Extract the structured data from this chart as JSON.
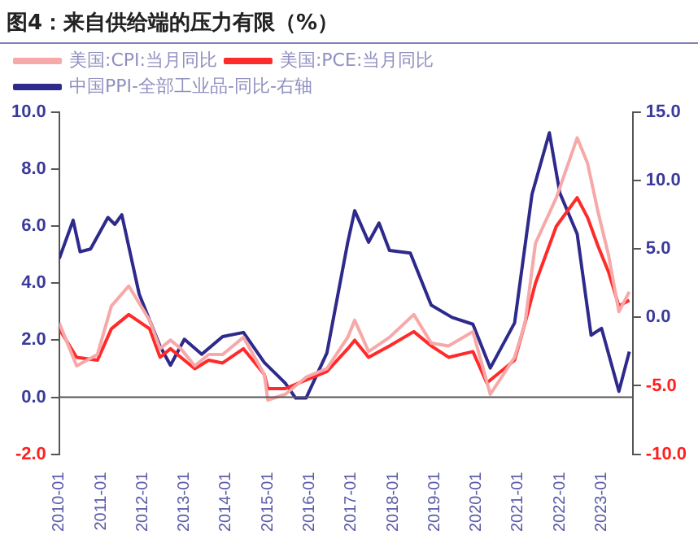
{
  "chart_data": {
    "type": "line",
    "title": "图4：来自供给端的压力有限（%）",
    "legend": "top",
    "grid": false,
    "marker": "none",
    "line_style": "solid",
    "xlim": [
      "2010-01",
      "2023-10"
    ],
    "xticks": [
      "2010-01",
      "2011-01",
      "2012-01",
      "2013-01",
      "2014-01",
      "2015-01",
      "2016-01",
      "2017-01",
      "2018-01",
      "2019-01",
      "2020-01",
      "2021-01",
      "2022-01",
      "2023-01"
    ],
    "ylim": [
      -2,
      10
    ],
    "yticks": [
      {
        "value": -2,
        "label": "-2.0"
      },
      {
        "value": 0,
        "label": "0.0"
      },
      {
        "value": 2,
        "label": "2.0"
      },
      {
        "value": 4,
        "label": "4.0"
      },
      {
        "value": 6,
        "label": "6.0"
      },
      {
        "value": 8,
        "label": "8.0"
      },
      {
        "value": 10,
        "label": "10.0"
      }
    ],
    "y2lim": [
      -10,
      15
    ],
    "y2ticks": [
      {
        "value": -10,
        "label": "-10.0"
      },
      {
        "value": -5,
        "label": "-5.0"
      },
      {
        "value": 0,
        "label": "0.0"
      },
      {
        "value": 5,
        "label": "5.0"
      },
      {
        "value": 10,
        "label": "10.0"
      },
      {
        "value": 15,
        "label": "15.0"
      }
    ],
    "ref_lines": [
      {
        "axis": "y",
        "value": 0,
        "color": "#555555"
      }
    ],
    "series": [
      {
        "name": "美国:CPI:当月同比",
        "color": "#f7a8a8",
        "x": [
          "2010-01",
          "2010-06",
          "2010-12",
          "2011-04",
          "2011-09",
          "2012-03",
          "2012-06",
          "2012-09",
          "2012-12",
          "2013-04",
          "2013-08",
          "2013-12",
          "2014-06",
          "2014-12",
          "2015-01",
          "2015-06",
          "2015-12",
          "2016-06",
          "2016-12",
          "2017-02",
          "2017-06",
          "2017-12",
          "2018-07",
          "2018-12",
          "2019-05",
          "2019-12",
          "2020-05",
          "2020-12",
          "2021-03",
          "2021-06",
          "2021-12",
          "2022-06",
          "2022-09",
          "2022-12",
          "2023-03",
          "2023-06",
          "2023-09"
        ],
        "values": [
          2.6,
          1.1,
          1.5,
          3.2,
          3.9,
          2.7,
          1.7,
          2.0,
          1.7,
          1.1,
          1.5,
          1.5,
          2.1,
          0.8,
          -0.1,
          0.1,
          0.7,
          1.0,
          2.1,
          2.7,
          1.6,
          2.1,
          2.9,
          1.9,
          1.8,
          2.3,
          0.1,
          1.4,
          2.6,
          5.4,
          7.0,
          9.1,
          8.2,
          6.5,
          5.0,
          3.0,
          3.7
        ]
      },
      {
        "name": "美国:PCE:当月同比",
        "color": "#ff2a2a",
        "x": [
          "2010-01",
          "2010-06",
          "2010-12",
          "2011-04",
          "2011-09",
          "2012-03",
          "2012-06",
          "2012-09",
          "2012-12",
          "2013-04",
          "2013-08",
          "2013-12",
          "2014-06",
          "2014-12",
          "2015-01",
          "2015-06",
          "2015-12",
          "2016-06",
          "2016-12",
          "2017-02",
          "2017-06",
          "2017-12",
          "2018-07",
          "2018-12",
          "2019-05",
          "2019-12",
          "2020-04",
          "2020-12",
          "2021-03",
          "2021-06",
          "2021-12",
          "2022-06",
          "2022-09",
          "2022-12",
          "2023-03",
          "2023-06",
          "2023-09"
        ],
        "values": [
          2.4,
          1.4,
          1.3,
          2.4,
          2.9,
          2.4,
          1.4,
          1.7,
          1.4,
          1.0,
          1.3,
          1.2,
          1.7,
          0.8,
          0.3,
          0.3,
          0.6,
          0.9,
          1.7,
          2.0,
          1.4,
          1.8,
          2.3,
          1.8,
          1.4,
          1.6,
          0.5,
          1.3,
          2.6,
          4.0,
          6.0,
          7.0,
          6.3,
          5.3,
          4.4,
          3.2,
          3.4
        ]
      },
      {
        "name": "中国PPI-全部工业品-同比-右轴",
        "color": "#2e2a8c",
        "axis": "y2",
        "x": [
          "2010-01",
          "2010-05",
          "2010-07",
          "2010-10",
          "2011-03",
          "2011-05",
          "2011-07",
          "2011-12",
          "2012-06",
          "2012-09",
          "2013-01",
          "2013-06",
          "2013-12",
          "2014-06",
          "2014-12",
          "2015-06",
          "2015-09",
          "2015-12",
          "2016-06",
          "2016-12",
          "2017-02",
          "2017-06",
          "2017-09",
          "2017-12",
          "2018-06",
          "2018-12",
          "2019-06",
          "2019-12",
          "2020-05",
          "2020-12",
          "2021-05",
          "2021-10",
          "2022-01",
          "2022-06",
          "2022-10",
          "2023-01",
          "2023-06",
          "2023-09"
        ],
        "values": [
          4.3,
          7.1,
          4.8,
          5.0,
          7.3,
          6.8,
          7.5,
          1.7,
          -2.1,
          -3.5,
          -1.6,
          -2.7,
          -1.4,
          -1.1,
          -3.3,
          -4.8,
          -5.9,
          -5.9,
          -2.6,
          5.5,
          7.8,
          5.5,
          6.9,
          4.9,
          4.7,
          0.9,
          0.0,
          -0.5,
          -3.7,
          -0.4,
          9.0,
          13.5,
          9.1,
          6.1,
          -1.3,
          -0.8,
          -5.4,
          -2.5
        ]
      }
    ]
  }
}
